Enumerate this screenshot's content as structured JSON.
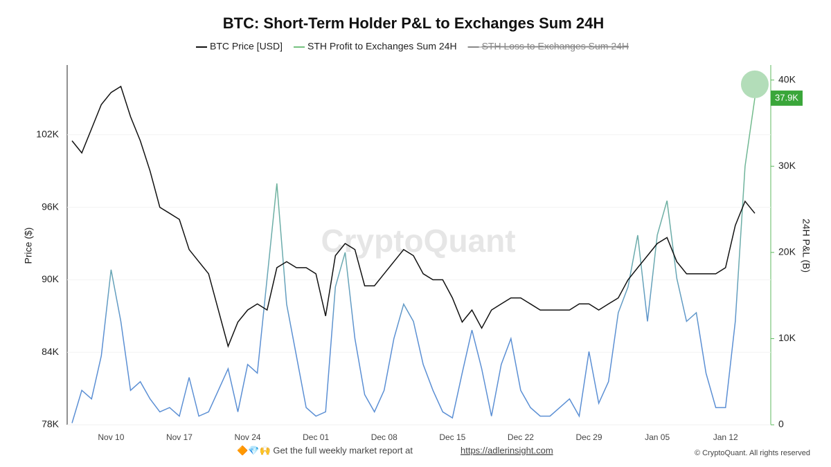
{
  "chart_data": {
    "type": "line",
    "title": "BTC: Short-Term Holder P&L to Exchanges Sum 24H",
    "y_label": "Price ($)",
    "y2_label": "24H P&L (B)",
    "watermark": "CryptoQuant",
    "footer_text": "🔶💎🙌 Get the full weekly market report at",
    "footer_link": "https://adlerinsight.com",
    "copyright": "© CryptoQuant. All rights reserved",
    "categories": [
      null,
      null,
      null,
      null,
      "Nov 10",
      null,
      null,
      null,
      null,
      null,
      null,
      "Nov 17",
      null,
      null,
      null,
      null,
      null,
      null,
      "Nov 24",
      null,
      null,
      null,
      null,
      null,
      null,
      "Dec 01",
      null,
      null,
      null,
      null,
      null,
      null,
      "Dec 08",
      null,
      null,
      null,
      null,
      null,
      null,
      "Dec 15",
      null,
      null,
      null,
      null,
      null,
      null,
      "Dec 22",
      null,
      null,
      null,
      null,
      null,
      null,
      "Dec 29",
      null,
      null,
      null,
      null,
      null,
      null,
      "Jan 05",
      null,
      null,
      null,
      null,
      null,
      null,
      "Jan 12",
      null,
      null,
      null
    ],
    "ylim": [
      78000,
      107600
    ],
    "yticks": [
      {
        "value": 78000,
        "label": "78K"
      },
      {
        "value": 84000,
        "label": "84K"
      },
      {
        "value": 90000,
        "label": "90K"
      },
      {
        "value": 96000,
        "label": "96K"
      },
      {
        "value": 102000,
        "label": "102K"
      }
    ],
    "y2lim": [
      0,
      41500
    ],
    "y2ticks": [
      0,
      {
        "value": 10000,
        "label": "10K"
      },
      {
        "value": 20000,
        "label": "20K"
      },
      {
        "value": 30000,
        "label": "30K"
      },
      {
        "value": 40000,
        "label": "40K"
      }
    ],
    "grid": true,
    "series": [
      {
        "name": "BTC Price [USD]",
        "color": "#111111",
        "values": [
          101500,
          100500,
          102500,
          104500,
          105500,
          106000,
          103500,
          101500,
          99000,
          96000,
          95500,
          95000,
          92500,
          91500,
          90500,
          87500,
          84500,
          86500,
          87500,
          88000,
          87500,
          91000,
          91500,
          91000,
          91000,
          90500,
          87000,
          92000,
          93000,
          92500,
          89500,
          89500,
          90500,
          91500,
          92500,
          92000,
          90500,
          90000,
          90000,
          88500,
          86500,
          87500,
          86000,
          87500,
          88000,
          88500,
          88500,
          88000,
          87500,
          87500,
          87500,
          87500,
          88000,
          88000,
          87500,
          88000,
          88500,
          90000,
          91000,
          92000,
          93000,
          93500,
          91500,
          90500,
          90500,
          90500,
          90500,
          91000,
          94500,
          96500,
          95500
        ]
      },
      {
        "name": "STH Profit to Exchanges Sum 24H",
        "color": "#74c17f",
        "axis": "y2",
        "values": [
          200,
          4000,
          3000,
          8000,
          18000,
          12000,
          4000,
          5000,
          3000,
          1500,
          2000,
          1000,
          5500,
          1000,
          1500,
          4000,
          6500,
          1500,
          7000,
          6000,
          17000,
          28000,
          14000,
          8000,
          2000,
          1000,
          1500,
          16000,
          20000,
          10000,
          3500,
          1500,
          4000,
          10000,
          14000,
          12000,
          7000,
          4000,
          1500,
          800,
          6000,
          11000,
          6500,
          1000,
          7000,
          10000,
          4000,
          2000,
          1000,
          1000,
          2000,
          3000,
          1000,
          8500,
          2500,
          5000,
          13000,
          16000,
          22000,
          12000,
          22000,
          26000,
          17000,
          12000,
          13000,
          6000,
          2000,
          2000,
          12000,
          30000,
          37900
        ],
        "value_labels": [
          null,
          null,
          null,
          null,
          null,
          null,
          null,
          null,
          null,
          null,
          null,
          null,
          null,
          null,
          null,
          null,
          null,
          null,
          null,
          null,
          null,
          null,
          null,
          null,
          null,
          null,
          null,
          null,
          null,
          null,
          null,
          null,
          null,
          null,
          null,
          null,
          null,
          null,
          null,
          null,
          null,
          null,
          null,
          null,
          null,
          null,
          null,
          null,
          null,
          null,
          null,
          null,
          null,
          null,
          null,
          null,
          null,
          null,
          null,
          null,
          null,
          null,
          null,
          null,
          null,
          null,
          null,
          null,
          null,
          null,
          "37.9K"
        ]
      },
      {
        "name": "STH Loss to Exchanges Sum 24H",
        "color": "#888888",
        "axis": "y2",
        "visible": false
      }
    ]
  }
}
